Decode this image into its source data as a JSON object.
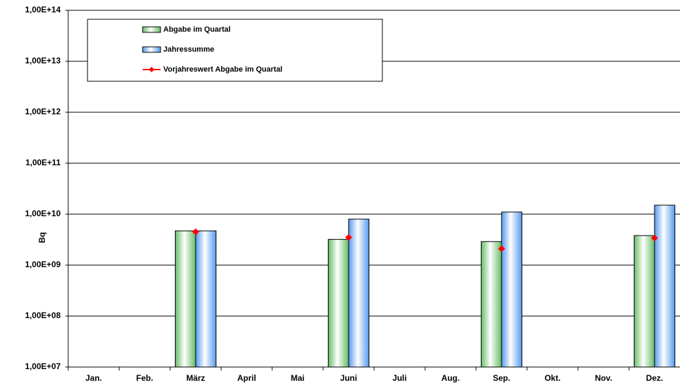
{
  "chart_data": {
    "type": "bar",
    "y_label": "Bq",
    "log_scale": true,
    "grid": true,
    "legend": "top-left",
    "categories": [
      "Jan.",
      "Feb.",
      "März",
      "April",
      "Mai",
      "Juni",
      "Juli",
      "Aug.",
      "Sep.",
      "Okt.",
      "Nov.",
      "Dez."
    ],
    "series": [
      {
        "name": "Abgabe im Quartal",
        "type": "bar",
        "color": "#66bb66",
        "values": [
          null,
          null,
          4700000000,
          null,
          null,
          3200000000,
          null,
          null,
          2900000000,
          null,
          null,
          3800000000
        ]
      },
      {
        "name": "Jahressumme",
        "type": "bar",
        "color": "#5599ee",
        "values": [
          null,
          null,
          4700000000,
          null,
          null,
          8000000000,
          null,
          null,
          11000000000,
          null,
          null,
          15000000000
        ]
      },
      {
        "name": "Vorjahreswert Abgabe im Quartal",
        "type": "line",
        "color": "#ff0000",
        "values": [
          null,
          null,
          4500000000,
          null,
          null,
          3500000000,
          null,
          null,
          2100000000,
          null,
          null,
          3400000000
        ]
      }
    ],
    "ylim": [
      10000000,
      100000000000000
    ],
    "yticks": [
      {
        "value": 10000000,
        "label": "1,00E+07"
      },
      {
        "value": 100000000,
        "label": "1,00E+08"
      },
      {
        "value": 1000000000,
        "label": "1,00E+09"
      },
      {
        "value": 10000000000,
        "label": "1,00E+10"
      },
      {
        "value": 100000000000,
        "label": "1,00E+11"
      },
      {
        "value": 1000000000000,
        "label": "1,00E+12"
      },
      {
        "value": 10000000000000,
        "label": "1,00E+13"
      },
      {
        "value": 100000000000000,
        "label": "1,00E+14"
      }
    ]
  }
}
